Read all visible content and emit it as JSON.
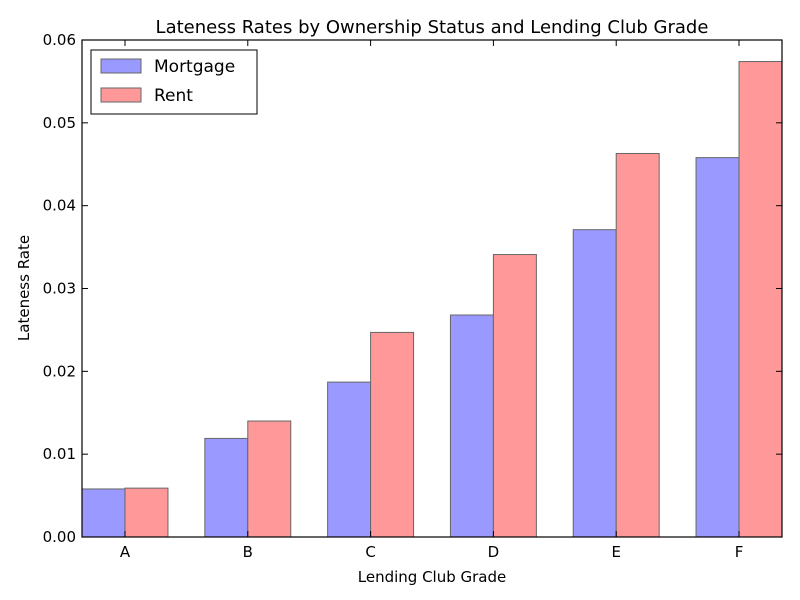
{
  "chart_data": {
    "type": "bar",
    "title": "Lateness Rates by Ownership Status and Lending Club Grade",
    "xlabel": "Lending Club Grade",
    "ylabel": "Lateness Rate",
    "categories": [
      "A",
      "B",
      "C",
      "D",
      "E",
      "F"
    ],
    "series": [
      {
        "name": "Mortgage",
        "color": "#9999ff",
        "values": [
          0.0058,
          0.0119,
          0.0187,
          0.0268,
          0.0371,
          0.0458
        ]
      },
      {
        "name": "Rent",
        "color": "#ff9999",
        "values": [
          0.0059,
          0.014,
          0.0247,
          0.0341,
          0.0463,
          0.0574
        ]
      }
    ],
    "ylim": [
      0,
      0.06
    ],
    "yticks": [
      "0.00",
      "0.01",
      "0.02",
      "0.03",
      "0.04",
      "0.05",
      "0.06"
    ],
    "grid": false,
    "legend": "top-left"
  }
}
